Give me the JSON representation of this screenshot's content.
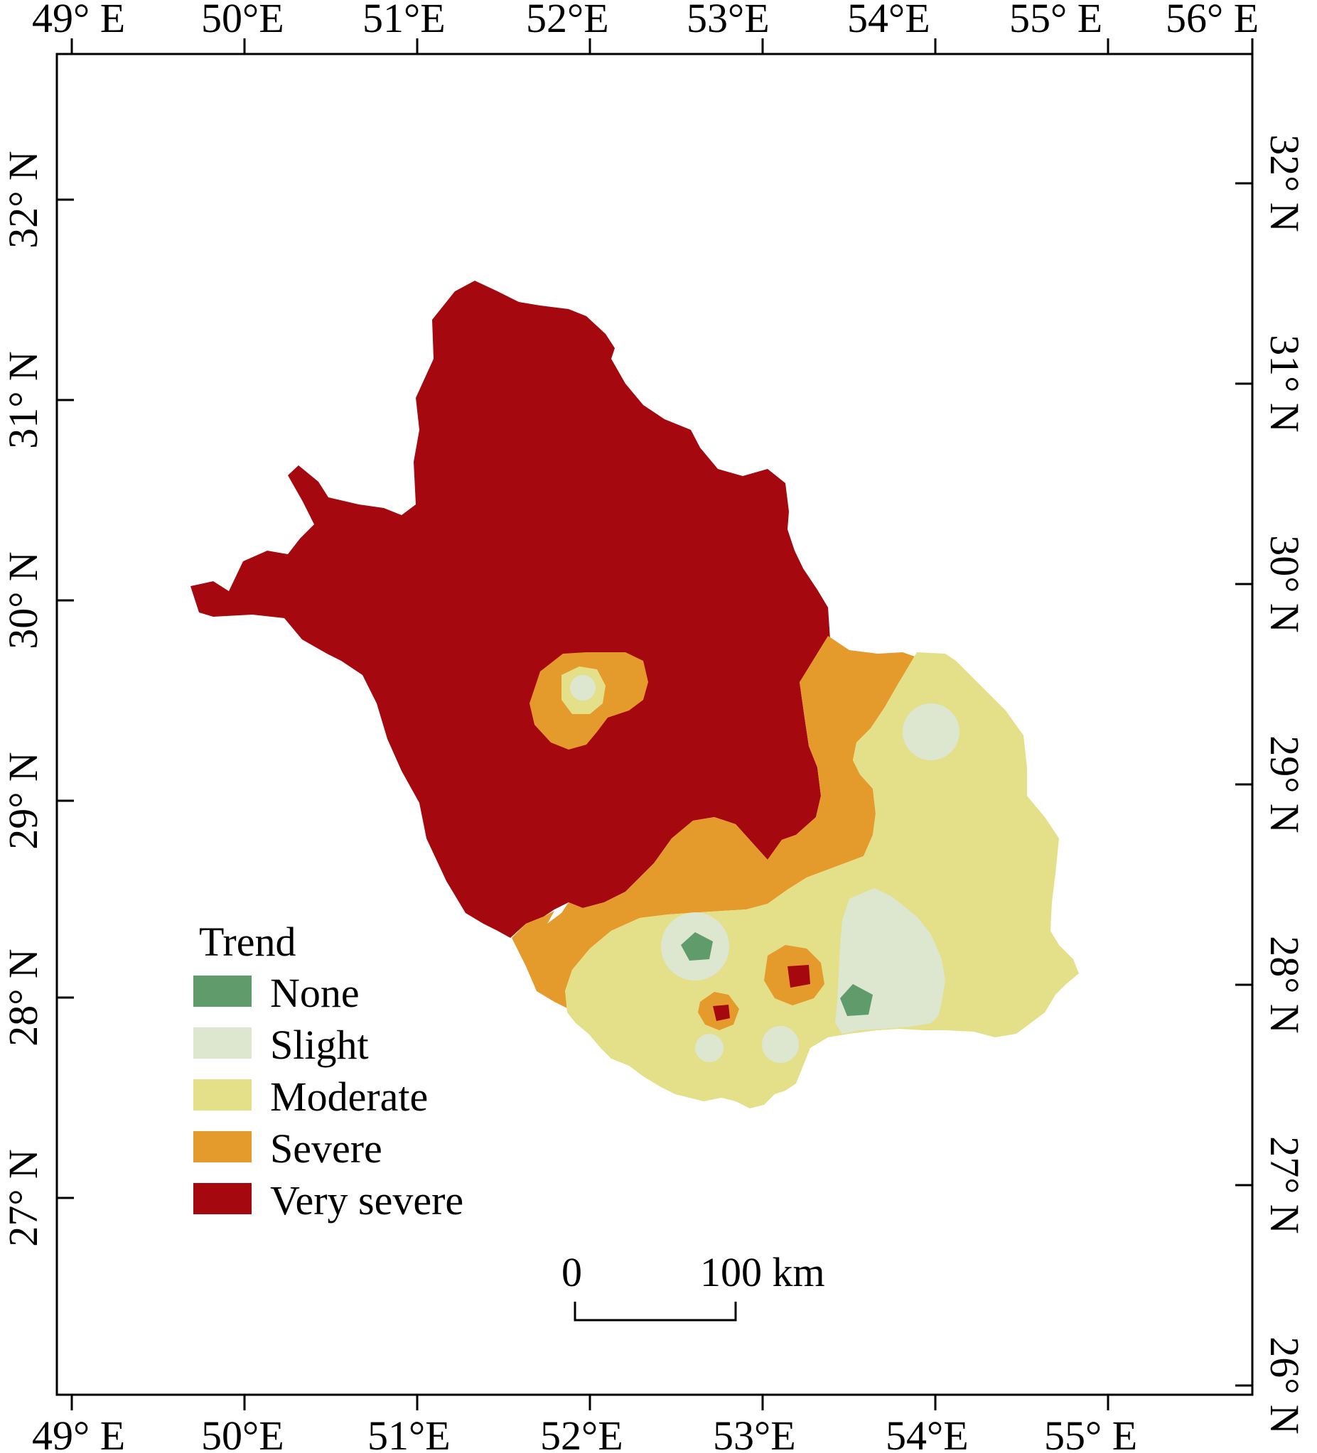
{
  "map": {
    "top_lon_labels": [
      "49° E",
      "50°E",
      "51°E",
      "52°E",
      "53°E",
      "54°E",
      "55° E",
      "56° E"
    ],
    "bottom_lon_labels": [
      "49° E",
      "50°E",
      "51°E",
      "52°E",
      "53°E",
      "54°E",
      "55° E"
    ],
    "left_lat_labels": [
      "32° N",
      "31° N",
      "30° N",
      "29° N",
      "28° N",
      "27° N"
    ],
    "right_lat_labels": [
      "32° N",
      "31° N",
      "30° N",
      "29° N",
      "28° N",
      "27° N",
      "26° N"
    ]
  },
  "legend": {
    "title": "Trend",
    "items": [
      {
        "label": "None",
        "color": "#5f9b6b"
      },
      {
        "label": "Slight",
        "color": "#dde6cf"
      },
      {
        "label": "Moderate",
        "color": "#e4e08a"
      },
      {
        "label": "Severe",
        "color": "#e59a2c"
      },
      {
        "label": "Very severe",
        "color": "#a5080e"
      }
    ]
  },
  "scale_bar": {
    "start_label": "0",
    "end_label": "100 km"
  },
  "colors": {
    "none": "#5f9b6b",
    "slight": "#dde6cf",
    "moderate": "#e4e08a",
    "severe": "#e59a2c",
    "very_severe": "#a5080e",
    "frame": "#000000"
  }
}
